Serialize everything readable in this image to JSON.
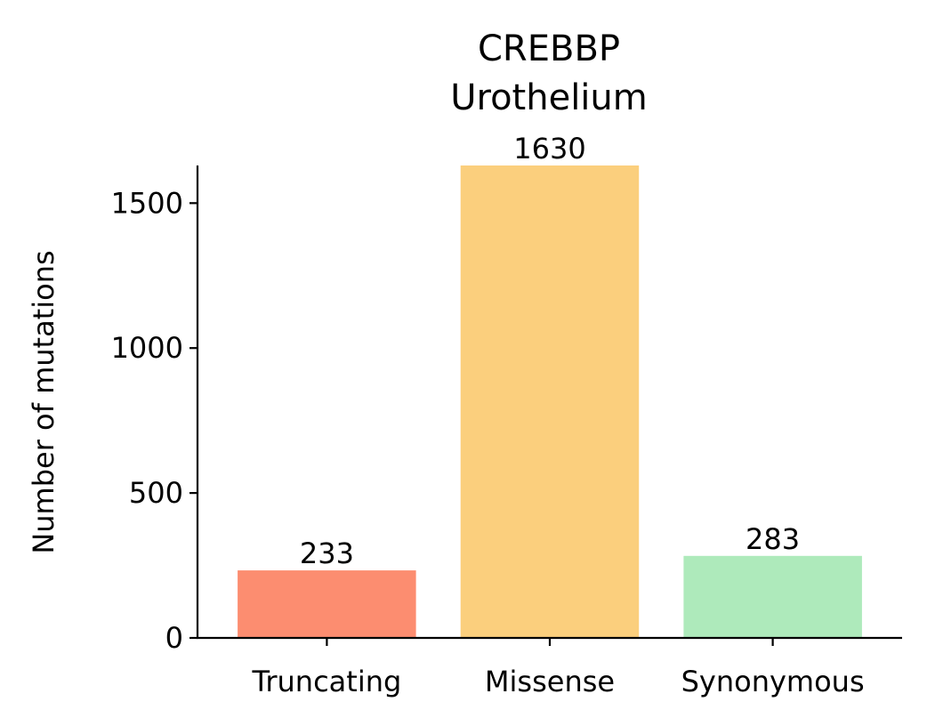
{
  "chart_data": {
    "type": "bar",
    "title": [
      "CREBBP",
      "Urothelium"
    ],
    "xlabel": "",
    "ylabel": "Number of mutations",
    "categories": [
      "Truncating",
      "Missense",
      "Synonymous"
    ],
    "values": [
      233,
      1630,
      283
    ],
    "colors": [
      "#fc8d70",
      "#fbcf7d",
      "#aeeabb"
    ],
    "yticks": [
      0,
      500,
      1000,
      1500
    ],
    "ylim": [
      0,
      1630
    ],
    "grid": false,
    "legend": "none"
  }
}
